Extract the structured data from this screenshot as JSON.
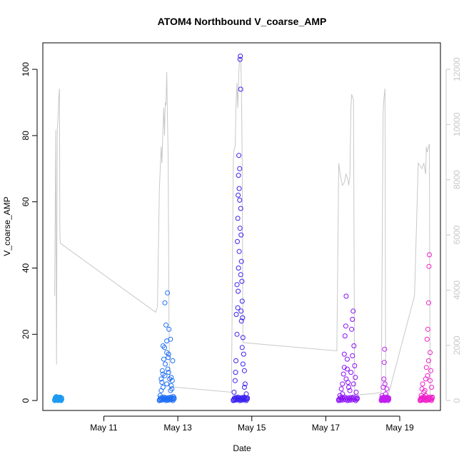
{
  "chart_data": {
    "type": "scatter",
    "title": "ATOM4 Northbound V_coarse_AMP",
    "xlabel": "Date",
    "ylabel": "V_coarse_AMP",
    "x_ticks": [
      "May 11",
      "May 13",
      "May 15",
      "May 17",
      "May 19"
    ],
    "x_tick_days": [
      11,
      13,
      15,
      17,
      19
    ],
    "xlim_days": [
      9.35,
      20.1
    ],
    "ylim": [
      -3,
      108
    ],
    "y_ticks": [
      0,
      20,
      40,
      60,
      80,
      100
    ],
    "y2lim": [
      -360,
      12960
    ],
    "y2_ticks": [
      0,
      2000,
      4000,
      6000,
      8000,
      10000,
      12000
    ],
    "grid": false,
    "colors": {
      "secondary_line": "#c8c8c8",
      "right_axis": "#c8c8c8"
    },
    "series": [
      {
        "color": "#1e9bf0",
        "points": [
          [
            9.67,
            0.3
          ],
          [
            9.69,
            0.8
          ],
          [
            9.71,
            1.2
          ],
          [
            9.73,
            0.5
          ],
          [
            9.75,
            0.9
          ],
          [
            9.77,
            0.2
          ],
          [
            9.79,
            0.6
          ],
          [
            9.8,
            1.0
          ],
          [
            9.82,
            0.4
          ],
          [
            9.84,
            0.1
          ],
          [
            9.86,
            0.3
          ]
        ]
      },
      {
        "color": "#1e6ef5",
        "points": [
          [
            12.5,
            0.2
          ],
          [
            12.52,
            1.5
          ],
          [
            12.55,
            3.0
          ],
          [
            12.57,
            5.5
          ],
          [
            12.6,
            8.0
          ],
          [
            12.62,
            12.5
          ],
          [
            12.64,
            16.0
          ],
          [
            12.65,
            29.5
          ],
          [
            12.68,
            22.8
          ],
          [
            12.7,
            18.0
          ],
          [
            12.72,
            32.5
          ],
          [
            12.73,
            9.5
          ],
          [
            12.75,
            14.0
          ],
          [
            12.76,
            21.5
          ],
          [
            12.78,
            6.5
          ],
          [
            12.8,
            18.5
          ],
          [
            12.82,
            7.0
          ],
          [
            12.84,
            3.5
          ],
          [
            12.86,
            12.0
          ],
          [
            12.88,
            1.2
          ],
          [
            12.9,
            0.5
          ],
          [
            12.55,
            6.5
          ],
          [
            12.6,
            4.0
          ],
          [
            12.65,
            7.5
          ],
          [
            12.7,
            5.0
          ],
          [
            12.75,
            8.5
          ],
          [
            12.8,
            3.0
          ],
          [
            12.85,
            6.0
          ],
          [
            12.58,
            9.0
          ],
          [
            12.66,
            11.0
          ],
          [
            12.74,
            13.0
          ],
          [
            12.82,
            4.5
          ],
          [
            12.6,
            16.5
          ],
          [
            12.7,
            14.5
          ]
        ]
      },
      {
        "color": "#3a22f0",
        "points": [
          [
            14.5,
            0.2
          ],
          [
            14.52,
            2.5
          ],
          [
            14.55,
            6.0
          ],
          [
            14.57,
            12.0
          ],
          [
            14.58,
            26.0
          ],
          [
            14.6,
            35.0
          ],
          [
            14.61,
            48.0
          ],
          [
            14.62,
            55.0
          ],
          [
            14.63,
            62.0
          ],
          [
            14.64,
            68.0
          ],
          [
            14.65,
            74.0
          ],
          [
            14.66,
            64.0
          ],
          [
            14.67,
            70.0
          ],
          [
            14.68,
            103.0
          ],
          [
            14.69,
            104.0
          ],
          [
            14.7,
            94.0
          ],
          [
            14.7,
            58.0
          ],
          [
            14.71,
            50.0
          ],
          [
            14.72,
            42.0
          ],
          [
            14.73,
            36.0
          ],
          [
            14.74,
            30.0
          ],
          [
            14.75,
            25.0
          ],
          [
            14.76,
            19.0
          ],
          [
            14.78,
            14.0
          ],
          [
            14.8,
            9.0
          ],
          [
            14.82,
            5.0
          ],
          [
            14.85,
            2.0
          ],
          [
            14.88,
            0.5
          ],
          [
            14.6,
            20.0
          ],
          [
            14.62,
            28.0
          ],
          [
            14.64,
            40.0
          ],
          [
            14.66,
            45.0
          ],
          [
            14.68,
            52.0
          ],
          [
            14.7,
            38.0
          ],
          [
            14.72,
            24.0
          ],
          [
            14.74,
            16.0
          ],
          [
            14.56,
            8.5
          ],
          [
            14.63,
            33.0
          ],
          [
            14.67,
            60.5
          ],
          [
            14.71,
            27.0
          ],
          [
            14.76,
            11.0
          ],
          [
            14.8,
            4.0
          ]
        ]
      },
      {
        "color": "#8a0ff5",
        "points": [
          [
            17.35,
            0.3
          ],
          [
            17.38,
            1.5
          ],
          [
            17.42,
            3.5
          ],
          [
            17.45,
            5.0
          ],
          [
            17.48,
            8.0
          ],
          [
            17.5,
            14.0
          ],
          [
            17.52,
            19.5
          ],
          [
            17.54,
            22.5
          ],
          [
            17.55,
            31.5
          ],
          [
            17.58,
            9.5
          ],
          [
            17.6,
            5.5
          ],
          [
            17.65,
            3.0
          ],
          [
            17.7,
            21.5
          ],
          [
            17.72,
            24.5
          ],
          [
            17.74,
            27.0
          ],
          [
            17.76,
            16.5
          ],
          [
            17.78,
            10.5
          ],
          [
            17.8,
            7.0
          ],
          [
            17.82,
            2.5
          ],
          [
            17.85,
            0.5
          ],
          [
            17.45,
            2.0
          ],
          [
            17.55,
            6.5
          ],
          [
            17.62,
            4.0
          ],
          [
            17.68,
            8.5
          ],
          [
            17.75,
            5.0
          ],
          [
            17.5,
            10.0
          ],
          [
            17.58,
            12.5
          ],
          [
            17.72,
            13.5
          ]
        ]
      },
      {
        "color": "#c21ef0",
        "points": [
          [
            18.5,
            0.2
          ],
          [
            18.52,
            1.5
          ],
          [
            18.55,
            4.0
          ],
          [
            18.57,
            6.5
          ],
          [
            18.58,
            11.5
          ],
          [
            18.59,
            15.5
          ],
          [
            18.6,
            5.0
          ],
          [
            18.62,
            2.0
          ],
          [
            18.65,
            3.5
          ],
          [
            18.68,
            0.8
          ],
          [
            18.7,
            0.3
          ]
        ]
      },
      {
        "color": "#f01ec8",
        "points": [
          [
            19.55,
            0.2
          ],
          [
            19.58,
            1.5
          ],
          [
            19.6,
            3.5
          ],
          [
            19.62,
            5.0
          ],
          [
            19.65,
            2.5
          ],
          [
            19.7,
            6.5
          ],
          [
            19.72,
            10.0
          ],
          [
            19.74,
            18.5
          ],
          [
            19.76,
            21.5
          ],
          [
            19.78,
            29.5
          ],
          [
            19.79,
            40.5
          ],
          [
            19.8,
            44.0
          ],
          [
            19.82,
            14.5
          ],
          [
            19.84,
            9.0
          ],
          [
            19.86,
            4.0
          ],
          [
            19.88,
            1.0
          ],
          [
            19.68,
            3.0
          ],
          [
            19.75,
            7.5
          ],
          [
            19.82,
            6.0
          ],
          [
            19.7,
            1.5
          ],
          [
            19.78,
            12.0
          ]
        ]
      }
    ],
    "secondary_line": [
      [
        9.67,
        3800
      ],
      [
        9.7,
        9800
      ],
      [
        9.72,
        1300
      ],
      [
        9.74,
        9800
      ],
      [
        9.76,
        10200
      ],
      [
        9.78,
        11000
      ],
      [
        9.8,
        11300
      ],
      [
        9.81,
        6200
      ],
      [
        9.82,
        5700
      ],
      [
        12.4,
        3200
      ],
      [
        12.45,
        3400
      ],
      [
        12.5,
        7600
      ],
      [
        12.52,
        8300
      ],
      [
        12.55,
        9200
      ],
      [
        12.57,
        8600
      ],
      [
        12.6,
        9900
      ],
      [
        12.62,
        10600
      ],
      [
        12.64,
        9600
      ],
      [
        12.66,
        10800
      ],
      [
        12.68,
        10700
      ],
      [
        12.7,
        11900
      ],
      [
        12.72,
        10200
      ],
      [
        12.74,
        8800
      ],
      [
        12.76,
        3000
      ],
      [
        12.78,
        500
      ],
      [
        14.45,
        300
      ],
      [
        14.5,
        8700
      ],
      [
        14.52,
        9100
      ],
      [
        14.55,
        9200
      ],
      [
        14.57,
        10600
      ],
      [
        14.6,
        11500
      ],
      [
        14.62,
        10600
      ],
      [
        14.65,
        11900
      ],
      [
        14.67,
        12400
      ],
      [
        14.7,
        12450
      ],
      [
        14.72,
        11400
      ],
      [
        14.74,
        8600
      ],
      [
        14.76,
        2100
      ],
      [
        17.3,
        1800
      ],
      [
        17.35,
        8600
      ],
      [
        17.4,
        8100
      ],
      [
        17.45,
        7800
      ],
      [
        17.5,
        7900
      ],
      [
        17.55,
        8200
      ],
      [
        17.6,
        8000
      ],
      [
        17.62,
        7800
      ],
      [
        17.65,
        8100
      ],
      [
        17.68,
        10600
      ],
      [
        17.7,
        11100
      ],
      [
        17.72,
        11000
      ],
      [
        17.75,
        10900
      ],
      [
        17.78,
        200
      ],
      [
        18.3,
        250
      ],
      [
        18.5,
        300
      ],
      [
        18.55,
        10400
      ],
      [
        18.57,
        10900
      ],
      [
        18.6,
        11300
      ],
      [
        18.62,
        200
      ],
      [
        18.68,
        150
      ],
      [
        19.4,
        3800
      ],
      [
        19.5,
        8600
      ],
      [
        19.55,
        8500
      ],
      [
        19.6,
        8400
      ],
      [
        19.65,
        8600
      ],
      [
        19.7,
        8200
      ],
      [
        19.72,
        9200
      ],
      [
        19.74,
        9000
      ],
      [
        19.76,
        9100
      ],
      [
        19.78,
        9200
      ],
      [
        19.8,
        9300
      ],
      [
        19.82,
        200
      ]
    ]
  }
}
